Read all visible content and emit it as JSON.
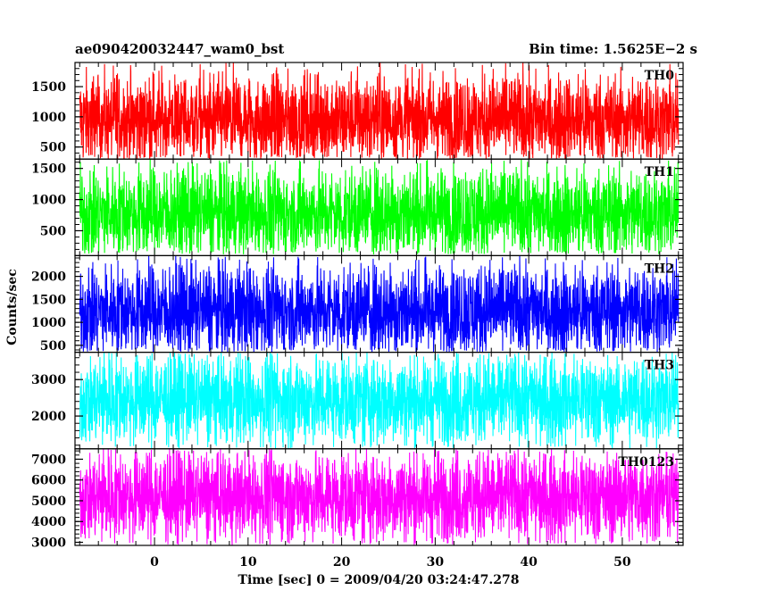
{
  "chart_data": {
    "type": "line",
    "title_left": "ae090420032447_wam0_bst",
    "title_right": "Bin time: 1.5625E−2 s",
    "xlabel": "Time [sec] 0 = 2009/04/20 03:24:47.278",
    "ylabel": "Counts/sec",
    "xlim": [
      -8.5,
      56.5
    ],
    "x_ticks": [
      "0",
      "10",
      "20",
      "30",
      "40",
      "50"
    ],
    "x_tick_values": [
      0,
      10,
      20,
      30,
      40,
      50
    ],
    "data_x_range": [
      -8.0,
      56.0
    ],
    "bin_time": 0.015625,
    "grid": false,
    "panels": [
      {
        "name": "TH0",
        "color": "#ff0000",
        "ylim": [
          300,
          1900
        ],
        "y_ticks": [
          "500",
          "1000",
          "1500"
        ],
        "y_tick_values": [
          500,
          1000,
          1500
        ],
        "mean": 950,
        "low": 300,
        "high": 1900
      },
      {
        "name": "TH1",
        "color": "#00ff00",
        "ylim": [
          100,
          1650
        ],
        "y_ticks": [
          "500",
          "1000",
          "1500"
        ],
        "y_tick_values": [
          500,
          1000,
          1500
        ],
        "mean": 780,
        "low": 120,
        "high": 1650
      },
      {
        "name": "TH2",
        "color": "#0000ff",
        "ylim": [
          350,
          2450
        ],
        "y_ticks": [
          "500",
          "1000",
          "1500",
          "2000"
        ],
        "y_tick_values": [
          500,
          1000,
          1500,
          2000
        ],
        "mean": 1250,
        "low": 350,
        "high": 2450
      },
      {
        "name": "TH3",
        "color": "#00ffff",
        "ylim": [
          1100,
          3750
        ],
        "y_ticks": [
          "2000",
          "3000"
        ],
        "y_tick_values": [
          2000,
          3000
        ],
        "mean": 2450,
        "low": 1100,
        "high": 3750
      },
      {
        "name": "TH0123",
        "color": "#ff00ff",
        "ylim": [
          2850,
          7500
        ],
        "y_ticks": [
          "3000",
          "4000",
          "5000",
          "6000",
          "7000"
        ],
        "y_tick_values": [
          3000,
          4000,
          5000,
          6000,
          7000
        ],
        "mean": 5200,
        "low": 2850,
        "high": 7500
      }
    ]
  }
}
